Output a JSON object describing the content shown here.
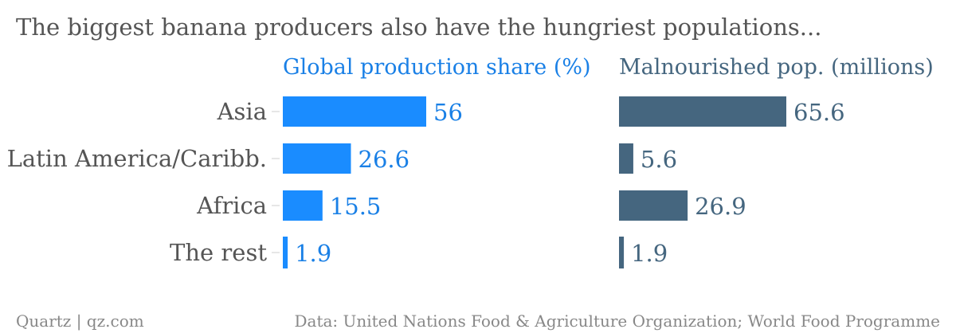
{
  "title": "The biggest banana producers also have the hungriest populations...",
  "footer": {
    "left": "Quartz | qz.com",
    "right": "Data: United Nations Food & Agriculture Organization; World Food Programme"
  },
  "colors": {
    "production": "#1a8cff",
    "production_text": "#1a80e6",
    "malnourished": "#45667f",
    "malnourished_text": "#45667f"
  },
  "chart_data": {
    "type": "bar",
    "orientation": "horizontal",
    "categories": [
      "Asia",
      "Latin America/Caribb.",
      "Africa",
      "The rest"
    ],
    "series": [
      {
        "name": "Global production share (%)",
        "values": [
          56,
          26.6,
          15.5,
          1.9
        ]
      },
      {
        "name": "Malnourished pop. (millions)",
        "values": [
          65.6,
          5.6,
          26.9,
          1.9
        ]
      }
    ],
    "value_labels": [
      [
        "56",
        "26.6",
        "15.5",
        "1.9"
      ],
      [
        "65.6",
        "5.6",
        "26.9",
        "1.9"
      ]
    ],
    "grid": false
  }
}
